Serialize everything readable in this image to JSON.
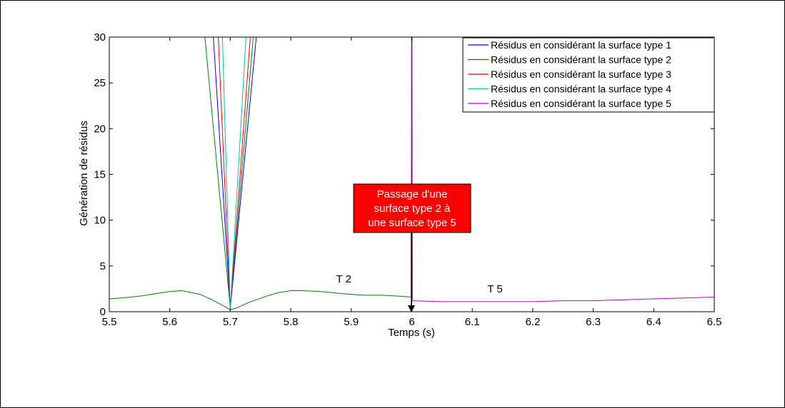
{
  "chart_data": {
    "type": "line",
    "title": "",
    "xlabel": "Temps (s)",
    "ylabel": "Génération de résidus",
    "xlim": [
      5.5,
      6.5
    ],
    "ylim": [
      0,
      30
    ],
    "xticks": [
      5.5,
      5.6,
      5.7,
      5.8,
      5.9,
      6,
      6.1,
      6.2,
      6.3,
      6.4,
      6.5
    ],
    "xtick_labels": [
      "5.5",
      "5.6",
      "5.7",
      "5.8",
      "5.9",
      "6",
      "6.1",
      "6.2",
      "6.3",
      "6.4",
      "6.5"
    ],
    "yticks": [
      0,
      5,
      10,
      15,
      20,
      25,
      30
    ],
    "ytick_labels": [
      "0",
      "5",
      "10",
      "15",
      "20",
      "25",
      "30"
    ],
    "grid": false,
    "legend_position": "top-right",
    "series": [
      {
        "name": "Résidus en considérant la surface type 1",
        "color": "#0000ff",
        "x": [
          5.672,
          5.7,
          5.743
        ],
        "y": [
          30,
          0.4,
          30
        ]
      },
      {
        "name": "Résidus en considérant la surface type 2",
        "color": "#008000",
        "x": [
          5.5,
          5.52,
          5.55,
          5.58,
          5.6,
          5.62,
          5.65,
          5.67,
          5.69,
          5.7,
          5.71,
          5.73,
          5.76,
          5.78,
          5.8,
          5.82,
          5.85,
          5.88,
          5.9,
          5.92,
          5.95,
          5.98,
          5.999,
          5.9995,
          6.0
        ],
        "y": [
          1.4,
          1.5,
          1.7,
          2.0,
          2.2,
          2.3,
          1.9,
          1.3,
          0.6,
          0.2,
          0.4,
          1.0,
          1.7,
          2.1,
          2.3,
          2.3,
          2.2,
          2.0,
          1.9,
          1.8,
          1.8,
          1.7,
          1.6,
          30,
          0.1
        ]
      },
      {
        "name": "Résidus en considérant la surface type 3",
        "color": "#ff0000",
        "x": [
          5.68,
          5.7,
          5.733
        ],
        "y": [
          30,
          0.4,
          30
        ]
      },
      {
        "name": "Résidus en considérant la surface type 4",
        "color": "#00bfbf",
        "x": [
          5.687,
          5.7,
          5.726
        ],
        "y": [
          30,
          0.4,
          30
        ]
      },
      {
        "name": "Résidus en considérant la surface type 5",
        "color": "#bf00bf",
        "x": [
          6.0,
          6.0005,
          6.001,
          6.05,
          6.1,
          6.15,
          6.2,
          6.25,
          6.3,
          6.35,
          6.4,
          6.45,
          6.5
        ],
        "y": [
          0.1,
          30,
          1.2,
          1.1,
          1.1,
          1.1,
          1.1,
          1.2,
          1.2,
          1.3,
          1.4,
          1.5,
          1.6
        ]
      },
      {
        "name": "",
        "color": "#008000",
        "x": [
          5.658,
          5.7,
          5.738
        ],
        "y": [
          30,
          0.4,
          30
        ]
      }
    ],
    "annotations": [
      {
        "text": "T 2",
        "x": 5.875,
        "y": 3.2
      },
      {
        "text": "T 5",
        "x": 6.125,
        "y": 2.1
      }
    ],
    "callout": {
      "lines": [
        "Passage d'une",
        "surface type 2 à",
        "une surface type 5"
      ],
      "fill": "#ff0000",
      "arrow_to": {
        "x": 6.0,
        "y": 0
      }
    }
  }
}
